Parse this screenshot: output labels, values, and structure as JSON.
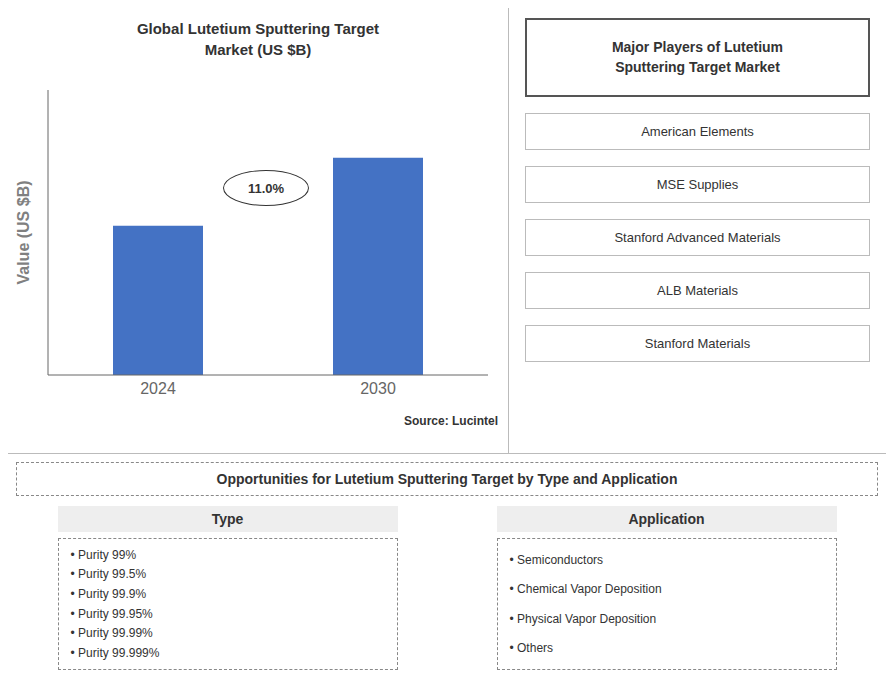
{
  "chart_data": {
    "type": "bar",
    "title": "Global Lutetium Sputtering Target\nMarket (US $B)",
    "categories": [
      "2024",
      "2030"
    ],
    "values": [
      0.55,
      0.8
    ],
    "color": "#4472C4",
    "ylim": [
      0,
      1.05
    ],
    "ylabel": "Value (US $B)",
    "tick_labels": "x",
    "annotations": [
      "11.0%"
    ],
    "source": "Source: Lucintel"
  },
  "panels": [
    {
      "title": "Major Players of Lutetium\nSputtering Target Market",
      "items": [
        "American Elements",
        "MSE Supplies",
        "Stanford Advanced Materials",
        "ALB Materials",
        "Stanford Materials"
      ]
    },
    {
      "title": "Opportunities for Lutetium Sputtering Target by Type and Application",
      "columns": [
        {
          "header": "Type",
          "items": [
            "• Purity 99%",
            "• Purity 99.5%",
            "• Purity 99.9%",
            "• Purity 99.95%",
            "• Purity 99.99%",
            "• Purity 99.999%"
          ]
        },
        {
          "header": "Application",
          "items": [
            "• Semiconductors",
            "• Chemical Vapor Deposition",
            "• Physical Vapor Deposition",
            "• Others"
          ]
        }
      ]
    }
  ]
}
